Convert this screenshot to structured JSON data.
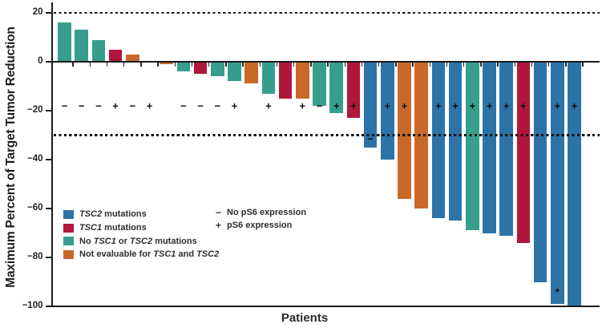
{
  "chart_data": {
    "type": "bar",
    "variant": "waterfall",
    "xlabel": "Patients",
    "ylabel": "Maximum Percent of Target Tumor Reduction",
    "ylim": [
      -100,
      25
    ],
    "yticks": [
      20,
      0,
      -20,
      -40,
      -60,
      -80,
      -100
    ],
    "ytick_labels": [
      "20",
      "0",
      "−20",
      "−40",
      "−60",
      "−80",
      "−100"
    ],
    "reference_lines_dashed": [
      20,
      -30
    ],
    "ps6_row_value": -18,
    "grid": false,
    "colors": {
      "tsc2": "#2e73a8",
      "tsc1": "#b0173b",
      "no_mutation": "#379e8d",
      "not_evaluable": "#c8692a"
    },
    "patients": [
      {
        "value": 16,
        "group": "no_mutation",
        "ps6": "-"
      },
      {
        "value": 13,
        "group": "no_mutation",
        "ps6": "-"
      },
      {
        "value": 9,
        "group": "no_mutation",
        "ps6": "-"
      },
      {
        "value": 5,
        "group": "tsc1",
        "ps6": "+"
      },
      {
        "value": 3,
        "group": "not_evaluable",
        "ps6": "-"
      },
      {
        "value": 0,
        "group": null,
        "ps6": "+"
      },
      {
        "value": -1,
        "group": "not_evaluable",
        "ps6": null
      },
      {
        "value": -4,
        "group": "no_mutation",
        "ps6": "-"
      },
      {
        "value": -5,
        "group": "tsc1",
        "ps6": "-"
      },
      {
        "value": -6,
        "group": "no_mutation",
        "ps6": "-"
      },
      {
        "value": -8,
        "group": "no_mutation",
        "ps6": "+"
      },
      {
        "value": -9,
        "group": "not_evaluable",
        "ps6": null
      },
      {
        "value": -13,
        "group": "no_mutation",
        "ps6": "+"
      },
      {
        "value": -15,
        "group": "tsc1",
        "ps6": null
      },
      {
        "value": -15,
        "group": "not_evaluable",
        "ps6": "+"
      },
      {
        "value": -18,
        "group": "no_mutation",
        "ps6": "-"
      },
      {
        "value": -21,
        "group": "no_mutation",
        "ps6": "+"
      },
      {
        "value": -23,
        "group": "tsc1",
        "ps6": "+"
      },
      {
        "value": -35,
        "group": "tsc2",
        "ps6": "-",
        "ps6_y": -31.5
      },
      {
        "value": -40,
        "group": "tsc2",
        "ps6": "+"
      },
      {
        "value": -56,
        "group": "not_evaluable",
        "ps6": "+"
      },
      {
        "value": -60,
        "group": "not_evaluable",
        "ps6": null
      },
      {
        "value": -64,
        "group": "tsc2",
        "ps6": "+"
      },
      {
        "value": -65,
        "group": "tsc2",
        "ps6": "+"
      },
      {
        "value": -69,
        "group": "no_mutation",
        "ps6": "+"
      },
      {
        "value": -70,
        "group": "tsc2",
        "ps6": "+"
      },
      {
        "value": -71,
        "group": "tsc2",
        "ps6": "+"
      },
      {
        "value": -74,
        "group": "tsc1",
        "ps6": "+"
      },
      {
        "value": -90,
        "group": "tsc2",
        "ps6": null
      },
      {
        "value": -99,
        "group": "tsc2",
        "ps6": "+",
        "annotation": "*",
        "annotation_y": -93.5
      },
      {
        "value": -100,
        "group": "tsc2",
        "ps6": "+"
      }
    ],
    "legend": {
      "mutation_groups": [
        {
          "group": "tsc2",
          "label_parts": [
            {
              "t": "TSC2",
              "i": true
            },
            {
              "t": " mutations",
              "i": false
            }
          ]
        },
        {
          "group": "tsc1",
          "label_parts": [
            {
              "t": "TSC1",
              "i": true
            },
            {
              "t": " mutations",
              "i": false
            }
          ]
        },
        {
          "group": "no_mutation",
          "label_parts": [
            {
              "t": "No ",
              "i": false
            },
            {
              "t": "TSC1",
              "i": true
            },
            {
              "t": " or ",
              "i": false
            },
            {
              "t": "TSC2",
              "i": true
            },
            {
              "t": " mutations",
              "i": false
            }
          ]
        },
        {
          "group": "not_evaluable",
          "label_parts": [
            {
              "t": "Not evaluable for ",
              "i": false
            },
            {
              "t": "TSC1",
              "i": true
            },
            {
              "t": " and ",
              "i": false
            },
            {
              "t": "TSC2",
              "i": true
            }
          ]
        }
      ],
      "ps6": [
        {
          "sign": "−",
          "label": "No pS6 expression"
        },
        {
          "sign": "+",
          "label": "pS6 expression"
        }
      ]
    }
  }
}
